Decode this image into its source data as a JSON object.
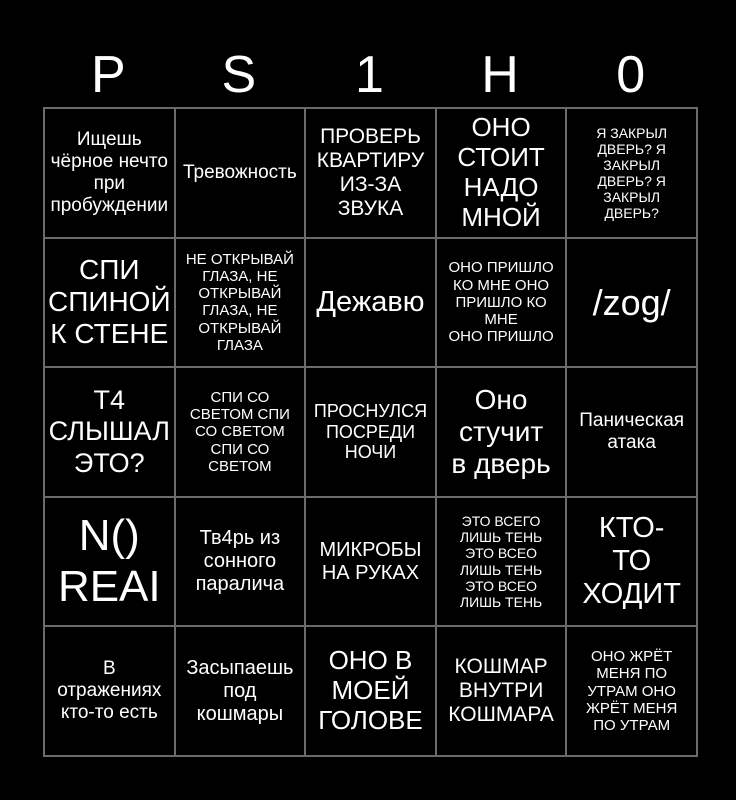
{
  "page": {
    "background_color": "#000000",
    "text_color": "#ffffff",
    "grid_line_color": "#6b6b6b"
  },
  "header": {
    "title": "PS1H0",
    "letters": [
      "P",
      "S",
      "1",
      "H",
      "0"
    ]
  },
  "grid": {
    "rows": 5,
    "cols": 5,
    "cells": [
      "Ищешь\nчёрное нечто\nпри\nпробуждении",
      "Тревожность",
      "ПРОВЕРЬ\nКВАРТИРУ\nИЗ-ЗА\nЗВУКА",
      "ОНО\nСТОИТ\nНАДО\nМНОЙ",
      "Я ЗАКРЫЛ\nДВЕРЬ? Я\nЗАКРЫЛ\nДВЕРЬ? Я\nЗАКРЫЛ\nДВЕРЬ?",
      "СПИ\nСПИНОЙ\nК СТЕНЕ",
      "НЕ ОТКРЫВАЙ\nГЛАЗА, НЕ\nОТКРЫВАЙ\nГЛАЗА, НЕ\nОТКРЫВАЙ\nГЛАЗА",
      "Дежавю",
      "ОНО ПРИШЛО\nКО МНЕ ОНО\nПРИШЛО КО\nМНЕ\nОНО ПРИШЛО",
      "/zog/",
      "Т4\nСЛЫШАЛ\nЭТО?",
      "СПИ СО\nСВЕТОМ СПИ\nСО СВЕТОМ\nСПИ СО\nСВЕТОМ",
      "ПРОСНУЛСЯ\nПОСРЕДИ\nНОЧИ",
      "Оно\nстучит\nв дверь",
      "Паническая\nатака",
      "N()\nREAI",
      "Тв4рь из\nсонного\nпаралича",
      "МИКРОБЫ\nНА РУКАХ",
      "ЭТО ВСЕГО\nЛИШЬ ТЕНЬ\nЭТО ВСЕО\nЛИШЬ ТЕНЬ\nЭТО ВСЕО\nЛИШЬ ТЕНЬ",
      "КТО-\nТО\nХОДИТ",
      "В\nотражениях\nкто-то есть",
      "Засыпаешь\nпод\nкошмары",
      "ОНО В\nМОЕЙ\nГОЛОВЕ",
      "КОШМАР\nВНУТРИ\nКОШМАРА",
      "ОНО ЖРЁТ\nМЕНЯ ПО\nУТРАМ ОНО\nЖРЁТ МЕНЯ\nПО УТРАМ"
    ]
  }
}
